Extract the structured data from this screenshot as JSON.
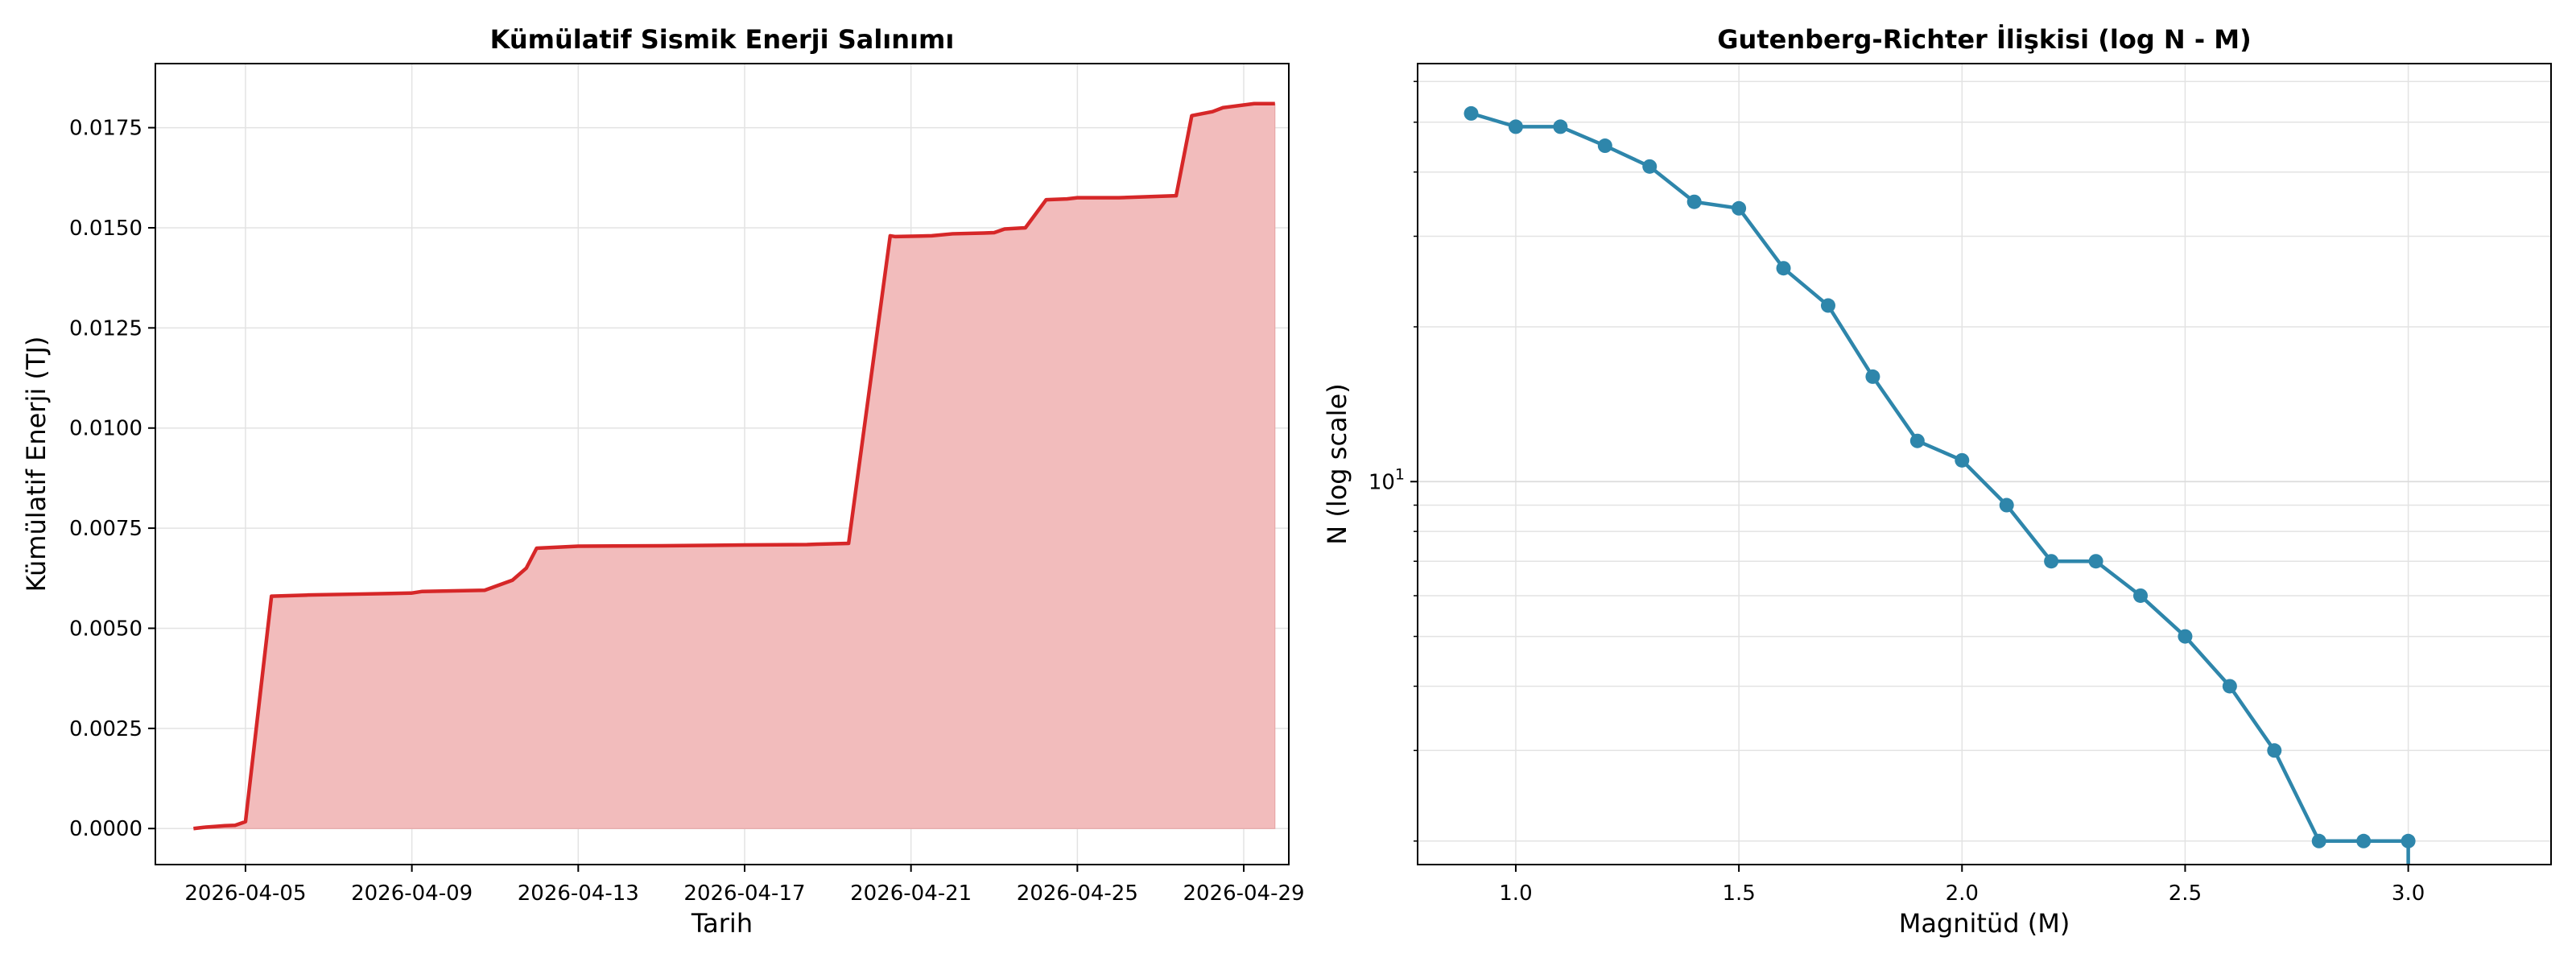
{
  "figure": {
    "background": "#ffffff"
  },
  "chart_data": [
    {
      "type": "area",
      "title": "Kümülatif Sismik Enerji Salınımı",
      "xlabel": "Tarih",
      "ylabel": "Kümülatif Enerji (TJ)",
      "x_ticks": [
        "2026-04-05",
        "2026-04-09",
        "2026-04-13",
        "2026-04-17",
        "2026-04-21",
        "2026-04-25",
        "2026-04-29"
      ],
      "y_ticks": [
        "0.0000",
        "0.0025",
        "0.0050",
        "0.0075",
        "0.0100",
        "0.0125",
        "0.0150",
        "0.0175"
      ],
      "xlim": [
        "2026-04-02T20:00",
        "2026-04-30T02:00"
      ],
      "ylim": [
        -0.0009,
        0.0191
      ],
      "grid": true,
      "line_color": "#d62728",
      "fill_color": "#f2bcbc",
      "series": [
        {
          "x": [
            "2026-04-03T18:00",
            "2026-04-04T00:00",
            "2026-04-04T06:00",
            "2026-04-04T12:00",
            "2026-04-04T18:00",
            "2026-04-05T00:00",
            "2026-04-05T15:00",
            "2026-04-06T12:00",
            "2026-04-07T12:00",
            "2026-04-08T12:00",
            "2026-04-09T00:00",
            "2026-04-09T06:00",
            "2026-04-10T18:00",
            "2026-04-11T10:00",
            "2026-04-11T18:00",
            "2026-04-12T00:00",
            "2026-04-13T00:00",
            "2026-04-15T00:00",
            "2026-04-17T00:00",
            "2026-04-18T12:00",
            "2026-04-18T18:00",
            "2026-04-19T12:00",
            "2026-04-20T12:00",
            "2026-04-20T15:00",
            "2026-04-21T12:00",
            "2026-04-22T00:00",
            "2026-04-22T18:00",
            "2026-04-23T00:00",
            "2026-04-23T06:00",
            "2026-04-23T18:00",
            "2026-04-24T06:00",
            "2026-04-24T18:00",
            "2026-04-25T00:00",
            "2026-04-26T00:00",
            "2026-04-27T09:00",
            "2026-04-27T18:00",
            "2026-04-28T06:00",
            "2026-04-28T12:00",
            "2026-04-29T06:00",
            "2026-04-29T18:00"
          ],
          "y": [
            0.0,
            3e-05,
            5e-05,
            7e-05,
            8e-05,
            0.00017,
            0.0058,
            0.00583,
            0.00585,
            0.00587,
            0.00588,
            0.00592,
            0.00595,
            0.0062,
            0.0065,
            0.007,
            0.00705,
            0.00706,
            0.00708,
            0.00709,
            0.0071,
            0.00712,
            0.0148,
            0.01478,
            0.0148,
            0.01485,
            0.01487,
            0.01488,
            0.01497,
            0.015,
            0.0157,
            0.01572,
            0.01575,
            0.01575,
            0.0158,
            0.0178,
            0.0179,
            0.018,
            0.0181,
            0.0181
          ]
        }
      ]
    },
    {
      "type": "line",
      "title": "Gutenberg-Richter İlişkisi (log N - M)",
      "xlabel": "Magnitüd (M)",
      "ylabel": "N (log scale)",
      "yscale": "log",
      "x_ticks": [
        "1.0",
        "1.5",
        "2.0",
        "2.5",
        "3.0"
      ],
      "y_ticks": [
        "10^1"
      ],
      "xlim": [
        0.78,
        3.32
      ],
      "ylim": [
        1.8,
        65
      ],
      "grid": true,
      "marker": "circle",
      "line_color": "#2e86ab",
      "series": [
        {
          "x": [
            0.9,
            1.0,
            1.1,
            1.2,
            1.3,
            1.4,
            1.5,
            1.6,
            1.7,
            1.8,
            1.9,
            2.0,
            2.1,
            2.2,
            2.3,
            2.4,
            2.5,
            2.6,
            2.7,
            2.8,
            2.9,
            3.0
          ],
          "y": [
            52,
            49,
            49,
            45,
            41,
            35,
            34,
            26,
            22,
            16,
            12,
            11,
            9,
            7,
            7,
            6,
            5,
            4,
            3,
            2,
            2,
            2
          ]
        }
      ]
    }
  ]
}
